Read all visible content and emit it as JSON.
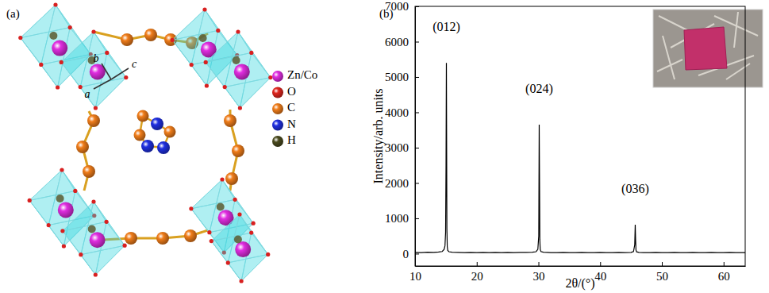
{
  "panel_a": {
    "label": "(a)",
    "axis_labels": [
      "a",
      "b",
      "c"
    ],
    "legend": [
      {
        "label": "Zn/Co",
        "color": "#e02de0"
      },
      {
        "label": "O",
        "color": "#e0261e"
      },
      {
        "label": "C",
        "color": "#f07d1a"
      },
      {
        "label": "N",
        "color": "#1f2fe0"
      },
      {
        "label": "H",
        "color": "#4a4a1e"
      }
    ]
  },
  "chart_data": {
    "type": "line",
    "title": "(b)",
    "x_label": "2θ/(°)",
    "y_label": "Intensity/arb. units",
    "color": "#000000",
    "grid": false,
    "x": [
      10,
      11,
      12,
      13,
      13.8,
      14.4,
      14.7,
      14.85,
      14.95,
      15.02,
      15.08,
      15.12,
      15.16,
      15.22,
      15.3,
      15.5,
      16,
      17,
      18,
      19,
      20,
      21,
      22,
      23,
      24,
      25,
      26,
      27,
      28,
      29,
      29.6,
      29.9,
      30.05,
      30.12,
      30.18,
      30.22,
      30.28,
      30.4,
      30.8,
      31.5,
      32,
      33,
      34,
      35,
      36,
      37,
      38,
      39,
      40,
      41,
      42,
      43,
      44,
      45,
      45.4,
      45.6,
      45.68,
      45.74,
      45.8,
      45.9,
      46.3,
      47,
      48,
      49,
      50,
      51,
      52,
      53,
      54,
      55,
      56,
      57,
      58,
      59,
      60,
      61,
      62,
      63,
      63.5
    ],
    "values": [
      35,
      30,
      40,
      35,
      45,
      60,
      120,
      220,
      600,
      2500,
      5400,
      3000,
      700,
      200,
      90,
      55,
      40,
      35,
      30,
      35,
      30,
      35,
      30,
      35,
      30,
      35,
      30,
      35,
      35,
      40,
      55,
      120,
      500,
      3650,
      1800,
      400,
      120,
      60,
      40,
      35,
      30,
      30,
      35,
      30,
      30,
      35,
      30,
      30,
      35,
      30,
      30,
      35,
      30,
      35,
      60,
      250,
      820,
      400,
      100,
      50,
      35,
      30,
      30,
      35,
      30,
      30,
      35,
      30,
      30,
      35,
      30,
      30,
      35,
      30,
      30,
      35,
      30,
      30,
      30
    ],
    "xlim": [
      10,
      63.5
    ],
    "ylim": [
      -350,
      7000
    ],
    "xticks": [
      10,
      20,
      30,
      40,
      50,
      60
    ],
    "yticks": [
      0,
      1000,
      2000,
      3000,
      4000,
      5000,
      6000,
      7000
    ],
    "annotations": [
      {
        "text": "(012)",
        "x": 15.08,
        "y": 5400
      },
      {
        "text": "(024)",
        "x": 30.12,
        "y": 3650
      },
      {
        "text": "(036)",
        "x": 45.68,
        "y": 820
      }
    ]
  }
}
